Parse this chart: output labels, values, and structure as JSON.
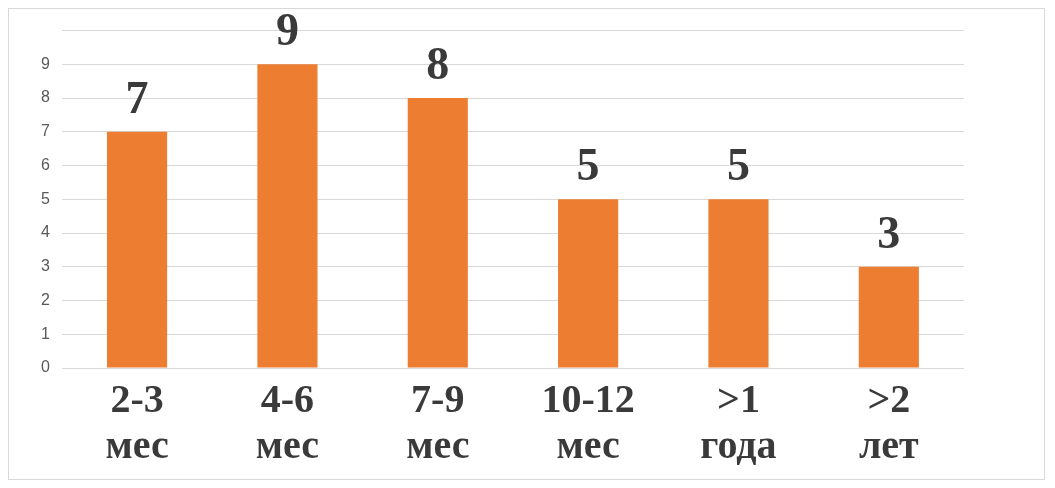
{
  "chart_data": {
    "type": "bar",
    "categories": [
      "2-3 мес",
      "4-6 мес",
      "7-9 мес",
      "10-12 мес",
      ">1 года",
      ">2 лет"
    ],
    "values": [
      7,
      9,
      8,
      5,
      5,
      3
    ],
    "color": "#ed7d31",
    "ylim": [
      0,
      10
    ],
    "yticks": [
      0,
      1,
      2,
      3,
      4,
      5,
      6,
      7,
      8,
      9,
      {
        "value": 10,
        "label": null
      }
    ],
    "grid": "y",
    "data_labels": true,
    "legend": false
  }
}
